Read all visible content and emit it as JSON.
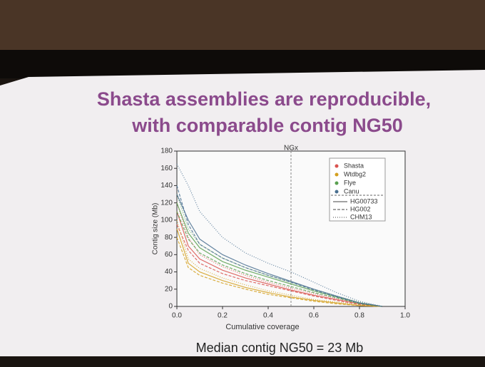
{
  "slide": {
    "title_lines": [
      "Shasta assemblies are reproducible,",
      "with comparable contig NG50"
    ],
    "footer": "Median contig NG50 = 23 Mb"
  },
  "chart_data": {
    "type": "line",
    "title": "NGx",
    "x_label": "Cumulative coverage",
    "y_label": "Contig size (Mb)",
    "x": [
      0,
      0.05,
      0.1,
      0.2,
      0.3,
      0.4,
      0.5,
      0.6,
      0.7,
      0.8,
      0.9
    ],
    "xlim": [
      0,
      1
    ],
    "ylim": [
      0,
      180
    ],
    "xticks": [
      {
        "value": 0,
        "label": "0.0"
      },
      0.2,
      0.4,
      0.6,
      0.8,
      {
        "value": 1,
        "label": "1.0"
      }
    ],
    "yticks": [
      0,
      20,
      40,
      60,
      80,
      100,
      120,
      140,
      160,
      180
    ],
    "marker_x": 0.5,
    "legend_position": "upper right",
    "line_styles": [
      {
        "name": "HG00733",
        "dash": "none"
      },
      {
        "name": "HG002",
        "dash": "4 2"
      },
      {
        "name": "CHM13",
        "dash": "1 2"
      }
    ],
    "series": [
      {
        "name": "Shasta",
        "color": "#d9534f",
        "runs": [
          {
            "values": [
              110,
              70,
              55,
              42,
              33,
              26,
              19,
              13,
              8,
              3,
              0
            ]
          },
          {
            "values": [
              95,
              65,
              50,
              38,
              30,
              24,
              18,
              12,
              7,
              2,
              0
            ]
          },
          {
            "values": [
              120,
              80,
              60,
              46,
              36,
              28,
              21,
              15,
              9,
              4,
              0
            ]
          }
        ]
      },
      {
        "name": "Wtdbg2",
        "color": "#d4a020",
        "runs": [
          {
            "values": [
              90,
              50,
              40,
              30,
              22,
              16,
              11,
              7,
              4,
              1,
              0
            ]
          },
          {
            "values": [
              80,
              45,
              36,
              27,
              20,
              14,
              10,
              6,
              3,
              1,
              0
            ]
          },
          {
            "values": [
              100,
              55,
              44,
              33,
              25,
              18,
              13,
              8,
              5,
              2,
              0
            ]
          }
        ]
      },
      {
        "name": "Flye",
        "color": "#5aa050",
        "runs": [
          {
            "values": [
              120,
              85,
              68,
              52,
              42,
              34,
              26,
              18,
              11,
              4,
              0
            ]
          },
          {
            "values": [
              110,
              78,
              62,
              48,
              38,
              30,
              23,
              16,
              10,
              3,
              0
            ]
          },
          {
            "values": [
              130,
              90,
              72,
              56,
              45,
              36,
              28,
              20,
              12,
              5,
              0
            ]
          }
        ]
      },
      {
        "name": "Canu",
        "color": "#4a7090",
        "runs": [
          {
            "values": [
              130,
              100,
              78,
              60,
              48,
              38,
              29,
              20,
              12,
              4,
              0
            ]
          },
          {
            "values": [
              140,
              95,
              72,
              56,
              45,
              36,
              28,
              19,
              11,
              4,
              0
            ]
          },
          {
            "values": [
              165,
              140,
              110,
              80,
              62,
              50,
              40,
              28,
              16,
              6,
              0
            ]
          }
        ]
      }
    ]
  }
}
